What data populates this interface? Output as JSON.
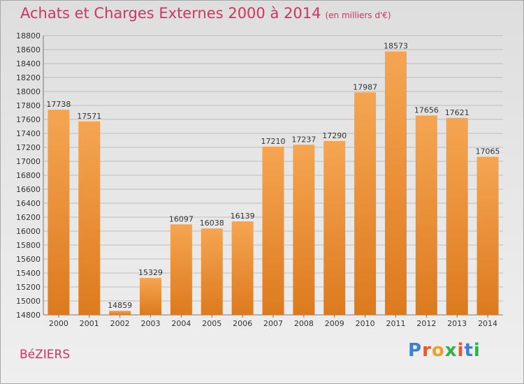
{
  "title": "Achats et Charges Externes 2000 à 2014",
  "unit_note": "(en milliers d'€)",
  "town": "BéZIERS",
  "brand": {
    "letters": [
      "P",
      "r",
      "o",
      "x",
      "i",
      "t",
      "i"
    ],
    "colors": [
      "#3a7fd8",
      "#e8562c",
      "#f0a020",
      "#2fb14a",
      "#e8562c",
      "#3a7fd8",
      "#2fb14a"
    ]
  },
  "colors": {
    "bar_top": "#f5a552",
    "bar_bottom": "#dd7a1e",
    "title": "#d2335f",
    "grid": "#bdbdbd"
  },
  "chart_data": {
    "type": "bar",
    "title": "Achats et Charges Externes 2000 à 2014",
    "subtitle": "(en milliers d'€)",
    "categories": [
      "2000",
      "2001",
      "2002",
      "2003",
      "2004",
      "2005",
      "2006",
      "2007",
      "2008",
      "2009",
      "2010",
      "2011",
      "2012",
      "2013",
      "2014"
    ],
    "values": [
      17738,
      17571,
      14859,
      15329,
      16097,
      16038,
      16139,
      17210,
      17237,
      17290,
      17987,
      18573,
      17656,
      17621,
      17065
    ],
    "ylim": [
      14800,
      18800
    ],
    "yticks": [
      14800,
      15000,
      15200,
      15400,
      15600,
      15800,
      16000,
      16200,
      16400,
      16600,
      16800,
      17000,
      17200,
      17400,
      17600,
      17800,
      18000,
      18200,
      18400,
      18600,
      18800
    ],
    "grid": true,
    "data_labels": true
  }
}
